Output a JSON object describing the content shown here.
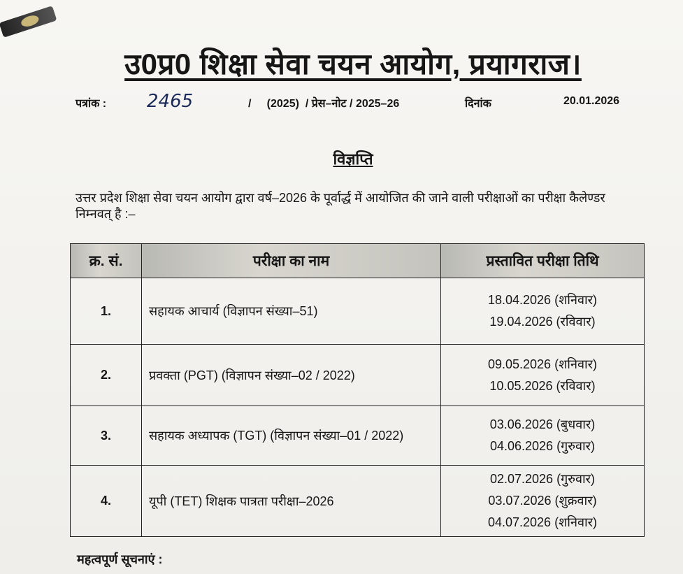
{
  "document": {
    "title": "उ0प्र0 शिक्षा सेवा चयन आयोग, प्रयागराज।",
    "reference_label": "पत्रांक :",
    "reference_number": "2465",
    "reference_suffix": "/     (2025)  / प्रेस–नोट / 2025–26",
    "date_label": "दिनांक",
    "date_value": "20.01.2026",
    "notice_heading": "विज्ञप्ति",
    "intro_paragraph": "उत्तर प्रदेश शिक्षा सेवा चयन आयोग द्वारा वर्ष–2026 के पूर्वार्द्ध में आयोजित की जाने वाली परीक्षाओं का परीक्षा कैलेण्डर निम्नवत् है :–",
    "table": {
      "headers": [
        "क्र. सं.",
        "परीक्षा का नाम",
        "प्रस्तावित परीक्षा तिथि"
      ],
      "rows": [
        {
          "no": "1.",
          "name": "सहायक आचार्य (विज्ञापन संख्या–51)",
          "dates": [
            "18.04.2026  (शनिवार)",
            "19.04.2026  (रविवार)"
          ]
        },
        {
          "no": "2.",
          "name": "प्रवक्ता (PGT) (विज्ञापन संख्या–02 / 2022)",
          "dates": [
            "09.05.2026  (शनिवार)",
            "10.05.2026  (रविवार)"
          ]
        },
        {
          "no": "3.",
          "name": "सहायक अध्यापक (TGT) (विज्ञापन संख्या–01 / 2022)",
          "dates": [
            "03.06.2026  (बुधवार)",
            "04.06.2026  (गुरुवार)"
          ]
        },
        {
          "no": "4.",
          "name": "यूपी (TET) शिक्षक पात्रता परीक्षा–2026",
          "dates": [
            "02.07.2026  (गुरुवार)",
            "03.07.2026  (शुक्रवार)",
            "04.07.2026  (शनिवार)"
          ]
        }
      ]
    },
    "footer_heading": "महत्वपूर्ण सूचनाएं :"
  }
}
